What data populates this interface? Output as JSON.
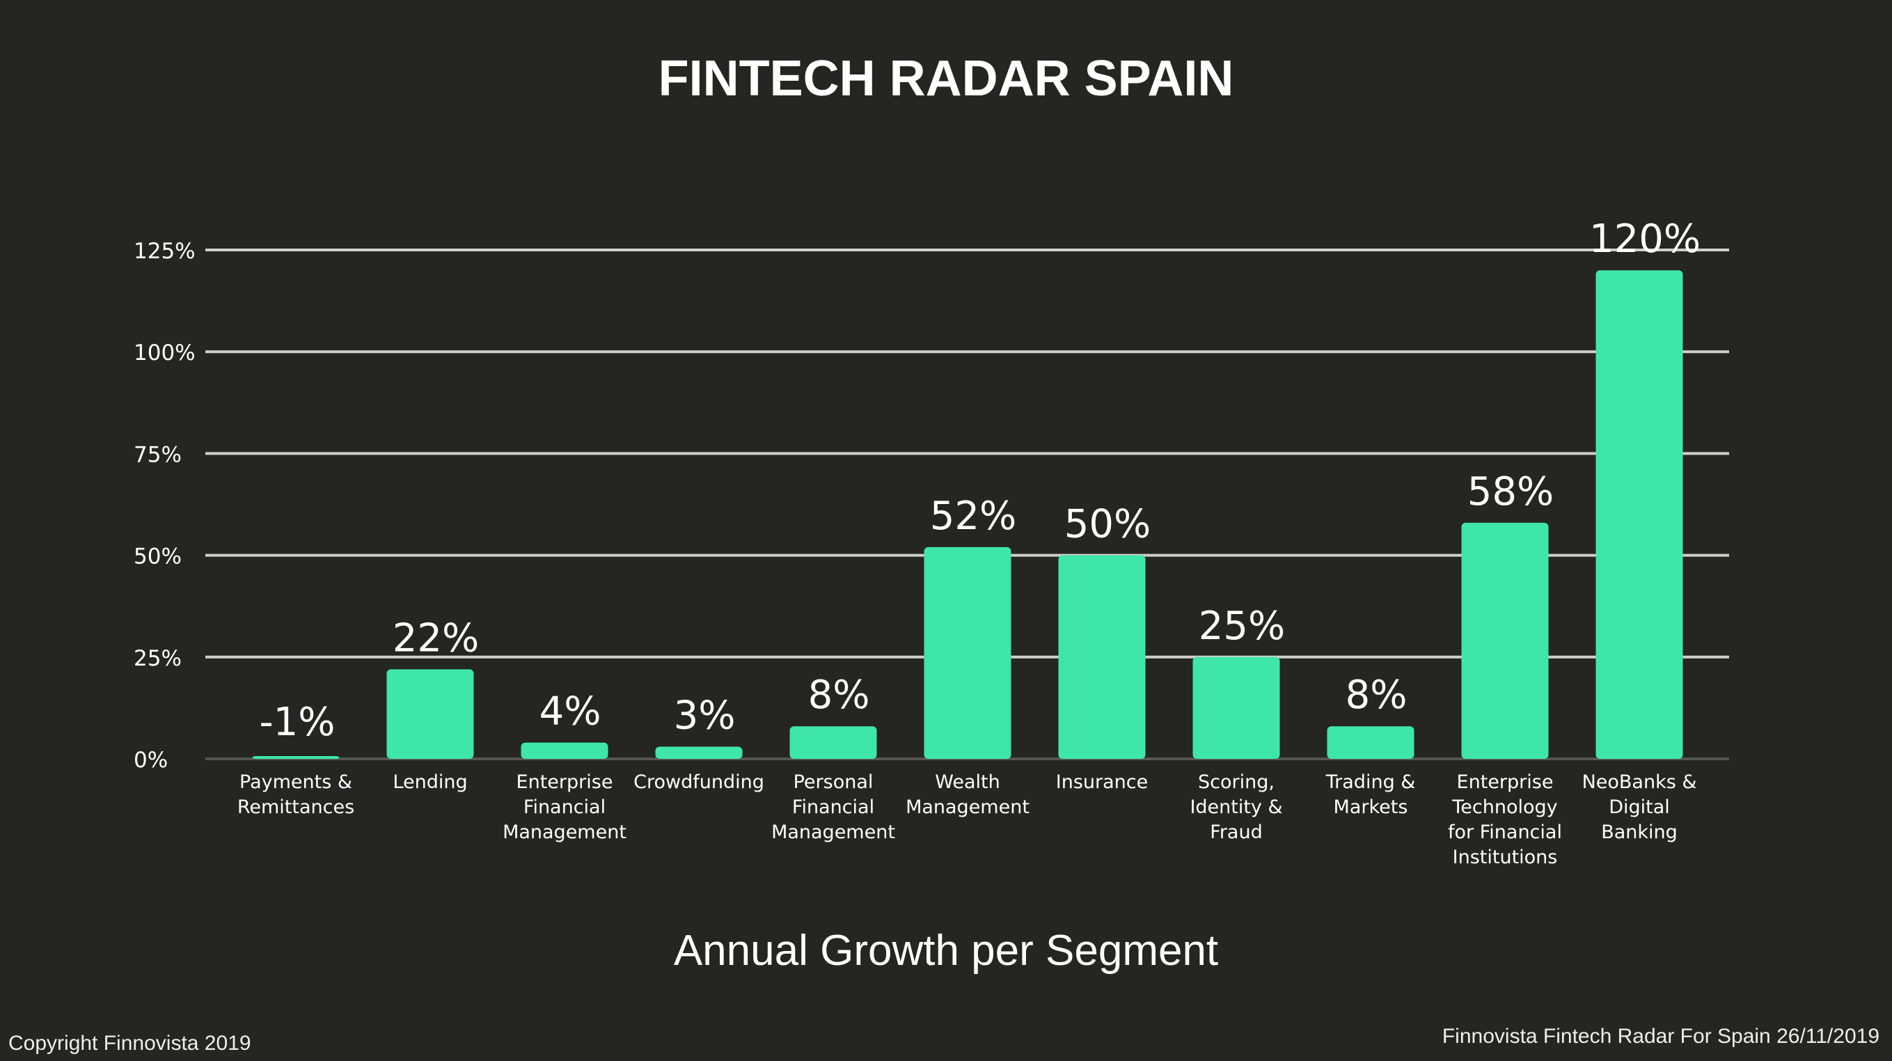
{
  "title": "FINTECH RADAR SPAIN",
  "subtitle": "Annual Growth per Segment",
  "footer": {
    "copyright": "Copyright Finnovista 2019",
    "source": "Finnovista Fintech Radar For Spain 26/11/2019"
  },
  "colors": {
    "background": "#252523",
    "bar": "#3ee6ab",
    "grid": "#cfcfcf",
    "text": "#ffffff"
  },
  "chart_data": {
    "type": "bar",
    "title": "FINTECH RADAR SPAIN",
    "xlabel": "Annual Growth per Segment",
    "ylabel": "",
    "ylim": [
      0,
      125
    ],
    "yticks": [
      "0%",
      "25%",
      "50%",
      "75%",
      "100%",
      "125%"
    ],
    "ytick_values": [
      0,
      25,
      50,
      75,
      100,
      125
    ],
    "grid": true,
    "categories": [
      [
        "Payments &",
        "Remittances"
      ],
      [
        "Lending"
      ],
      [
        "Enterprise",
        "Financial",
        "Management"
      ],
      [
        "Crowdfunding"
      ],
      [
        "Personal",
        "Financial",
        "Management"
      ],
      [
        "Wealth",
        "Management"
      ],
      [
        "Insurance"
      ],
      [
        "Scoring,",
        "Identity &",
        "Fraud"
      ],
      [
        "Trading &",
        "Markets"
      ],
      [
        "Enterprise",
        "Technology",
        "for Financial",
        "Institutions"
      ],
      [
        "NeoBanks &",
        "Digital",
        "Banking"
      ]
    ],
    "values": [
      -1,
      22,
      4,
      3,
      8,
      52,
      50,
      25,
      8,
      58,
      120
    ],
    "data_labels": [
      "-1%",
      "22%",
      "4%",
      "3%",
      "8%",
      "52%",
      "50%",
      "25%",
      "8%",
      "58%",
      "120%"
    ]
  }
}
